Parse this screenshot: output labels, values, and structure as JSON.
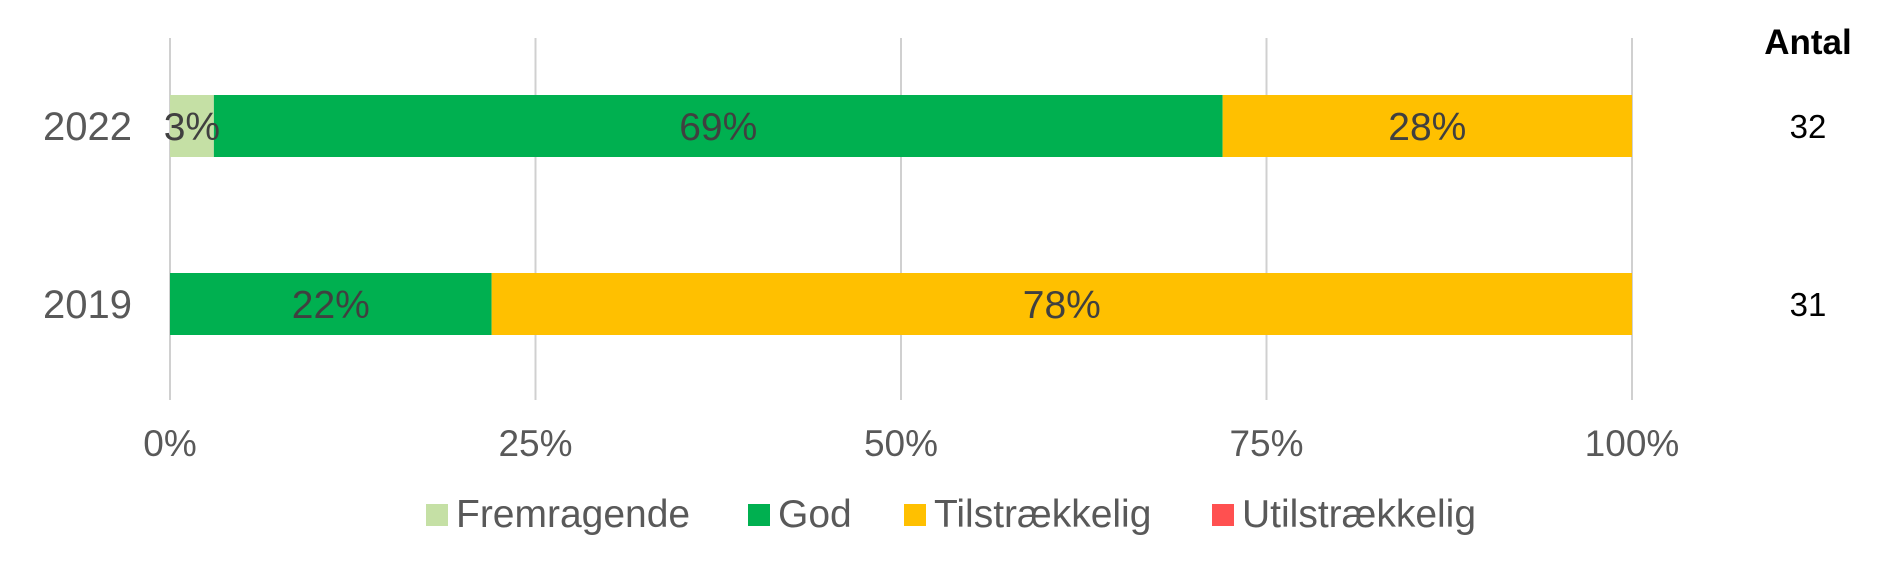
{
  "chart_data": {
    "type": "bar",
    "orientation": "horizontal",
    "stacked": true,
    "categories": [
      "2022",
      "2019"
    ],
    "series": [
      {
        "name": "Fremragende",
        "color": "#c5e0a5",
        "values": [
          3,
          0
        ]
      },
      {
        "name": "God",
        "color": "#00b050",
        "values": [
          69,
          22
        ]
      },
      {
        "name": "Tilstrækkelig",
        "color": "#ffc000",
        "values": [
          28,
          78
        ]
      },
      {
        "name": "Utilstrækkelig",
        "color": "#ff5050",
        "values": [
          0,
          0
        ]
      }
    ],
    "data_labels": [
      [
        "3%",
        "69%",
        "28%",
        ""
      ],
      [
        "",
        "22%",
        "78%",
        ""
      ]
    ],
    "xlim": [
      0,
      100
    ],
    "xticks": [
      "0%",
      "25%",
      "50%",
      "75%",
      "100%"
    ],
    "grid": true,
    "legend": "bottom",
    "counts_title": "Antal",
    "counts": [
      "32",
      "31"
    ]
  }
}
